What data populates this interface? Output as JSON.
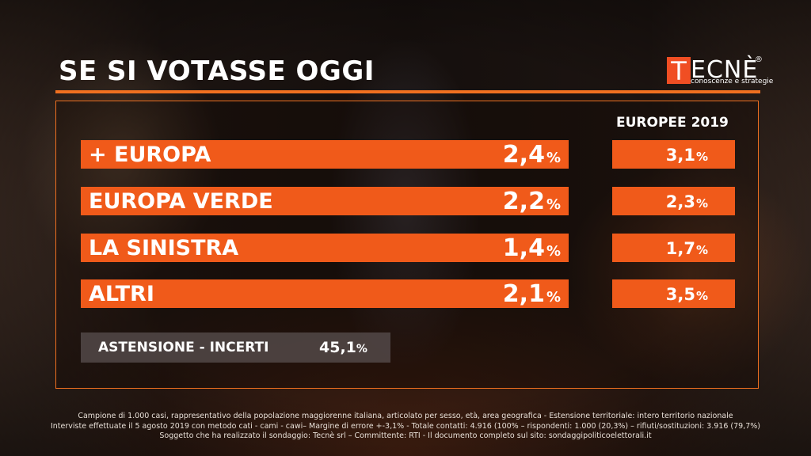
{
  "header": {
    "title": "SE SI VOTASSE OGGI"
  },
  "logo": {
    "initial": "T",
    "rest": "ECNÈ",
    "registered": "®",
    "tagline": "conoscenze e strategie"
  },
  "chart_data": {
    "type": "table",
    "columns": [
      "",
      "",
      "EUROPEE 2019"
    ],
    "rows": [
      {
        "party": "+ EUROPA",
        "value": "2,4",
        "prev": "3,1"
      },
      {
        "party": "EUROPA VERDE",
        "value": "2,2",
        "prev": "2,3"
      },
      {
        "party": "LA SINISTRA",
        "value": "1,4",
        "prev": "1,7"
      },
      {
        "party": "ALTRI",
        "value": "2,1",
        "prev": "3,5"
      }
    ],
    "unit": "%",
    "abstention": {
      "label": "ASTENSIONE - INCERTI",
      "value": "45,1"
    }
  },
  "previous_header": "EUROPEE 2019",
  "footnote": [
    "Campione di 1.000 casi, rappresentativo della popolazione maggiorenne italiana, articolato per sesso, età, area geografica - Estensione territoriale: intero territorio nazionale",
    "Interviste effettuate il 5 agosto 2019 con metodo cati - cami - cawi– Margine di errore +-3,1%  - Totale contatti: 4.916 (100% – rispondenti:  1.000 (20,3%) – rifiuti/sostituzioni: 3.916 (79,7%)",
    "Soggetto che ha realizzato il sondaggio: Tecnè srl – Committente: RTI - Il documento completo sul sito: sondaggipoliticoelettorali.it"
  ]
}
